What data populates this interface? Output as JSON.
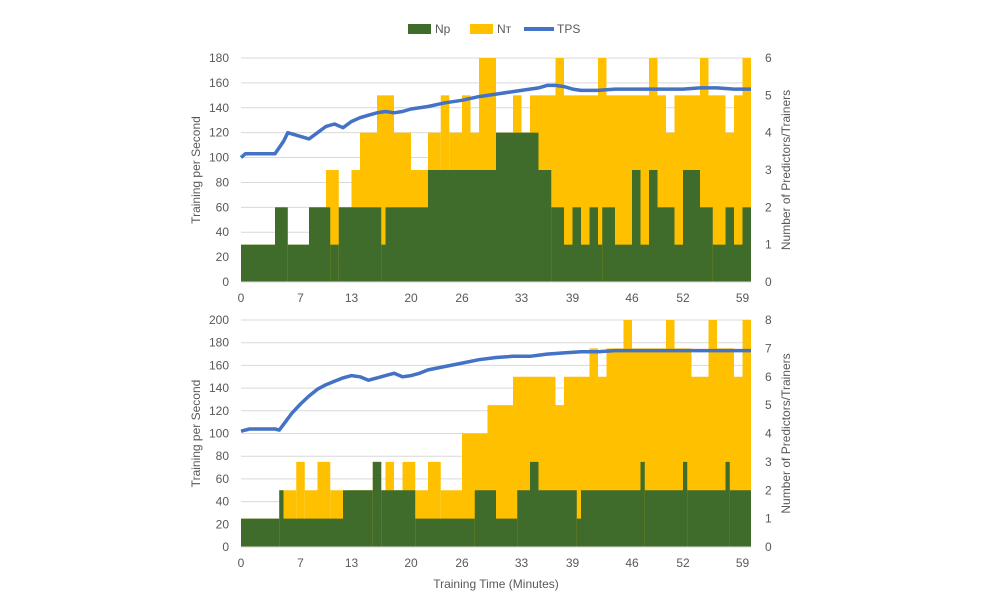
{
  "legend": {
    "np_label": "Np",
    "nt_label": "Nт",
    "tps_label": "TPS"
  },
  "colors": {
    "np": "#3f6b2b",
    "nt": "#ffc000",
    "tps": "#4472c4",
    "grid": "#d9d9d9",
    "axis_text": "#595959"
  },
  "shared_x": {
    "label": "Training Time (Minutes)",
    "range": [
      0,
      60
    ],
    "ticks": [
      0,
      7,
      13,
      20,
      26,
      33,
      39,
      46,
      52,
      59
    ]
  },
  "chart_data": [
    {
      "type": "bar",
      "title": "",
      "xlabel": "",
      "ylabel": "Training  per Second",
      "y2label": "Number of Predictors/Trainers",
      "ylim": [
        0,
        180
      ],
      "yticks": [
        0,
        20,
        40,
        60,
        80,
        100,
        120,
        140,
        160,
        180
      ],
      "y2lim": [
        0,
        6
      ],
      "y2ticks": [
        0,
        1,
        2,
        3,
        4,
        5,
        6
      ],
      "grid": true,
      "legend_position": "top-center",
      "series": [
        {
          "name": "Np",
          "axis": "secondary",
          "kind": "step-bar",
          "points": [
            [
              0,
              1
            ],
            [
              4,
              2
            ],
            [
              5.5,
              1
            ],
            [
              8,
              2
            ],
            [
              10.5,
              1
            ],
            [
              11.5,
              2
            ],
            [
              16.5,
              1
            ],
            [
              17,
              2
            ],
            [
              22,
              3
            ],
            [
              30,
              4
            ],
            [
              35,
              3
            ],
            [
              36.5,
              2
            ],
            [
              38,
              1
            ],
            [
              39,
              2
            ],
            [
              40,
              1
            ],
            [
              41,
              2
            ],
            [
              42,
              1
            ],
            [
              42.5,
              2
            ],
            [
              44,
              1
            ],
            [
              46,
              3
            ],
            [
              47,
              1
            ],
            [
              48,
              3
            ],
            [
              49,
              2
            ],
            [
              51,
              1
            ],
            [
              52,
              3
            ],
            [
              54,
              2
            ],
            [
              55.5,
              1
            ],
            [
              57,
              2
            ],
            [
              58,
              1
            ],
            [
              59,
              2
            ],
            [
              60,
              2
            ]
          ]
        },
        {
          "name": "Nт",
          "axis": "secondary",
          "kind": "step-bar",
          "points": [
            [
              0,
              1
            ],
            [
              4,
              2
            ],
            [
              5.5,
              1
            ],
            [
              8,
              2
            ],
            [
              10,
              3
            ],
            [
              11.5,
              2
            ],
            [
              13,
              3
            ],
            [
              14,
              4
            ],
            [
              16,
              5
            ],
            [
              18,
              4
            ],
            [
              20,
              3
            ],
            [
              22,
              4
            ],
            [
              23.5,
              5
            ],
            [
              24.5,
              4
            ],
            [
              26,
              5
            ],
            [
              27,
              4
            ],
            [
              28,
              6
            ],
            [
              30,
              4
            ],
            [
              32,
              5
            ],
            [
              33,
              4
            ],
            [
              34,
              5
            ],
            [
              37,
              6
            ],
            [
              38,
              5
            ],
            [
              42,
              6
            ],
            [
              43,
              5
            ],
            [
              48,
              6
            ],
            [
              49,
              5
            ],
            [
              50,
              4
            ],
            [
              51,
              5
            ],
            [
              54,
              6
            ],
            [
              55,
              5
            ],
            [
              57,
              4
            ],
            [
              58,
              5
            ],
            [
              59,
              6
            ],
            [
              60,
              6
            ]
          ]
        },
        {
          "name": "TPS",
          "axis": "primary",
          "kind": "line",
          "points": [
            [
              0,
              100
            ],
            [
              0.5,
              103
            ],
            [
              1,
              103
            ],
            [
              3,
              103
            ],
            [
              4,
              103
            ],
            [
              5,
              113
            ],
            [
              5.5,
              120
            ],
            [
              6,
              119
            ],
            [
              7,
              117
            ],
            [
              8,
              115
            ],
            [
              9,
              120
            ],
            [
              10,
              125
            ],
            [
              11,
              127
            ],
            [
              12,
              124
            ],
            [
              13,
              129
            ],
            [
              14,
              132
            ],
            [
              15,
              134
            ],
            [
              16,
              136
            ],
            [
              17,
              137
            ],
            [
              18,
              136
            ],
            [
              19,
              137
            ],
            [
              20,
              139
            ],
            [
              22,
              141
            ],
            [
              24,
              144
            ],
            [
              26,
              146
            ],
            [
              28,
              149
            ],
            [
              30,
              151
            ],
            [
              32,
              153
            ],
            [
              34,
              155
            ],
            [
              35,
              156
            ],
            [
              36,
              158
            ],
            [
              37,
              158
            ],
            [
              38,
              157
            ],
            [
              39,
              155
            ],
            [
              40,
              154
            ],
            [
              42,
              154
            ],
            [
              44,
              155
            ],
            [
              46,
              155
            ],
            [
              48,
              155
            ],
            [
              50,
              155
            ],
            [
              52,
              155
            ],
            [
              54,
              156
            ],
            [
              56,
              156
            ],
            [
              58,
              155
            ],
            [
              60,
              155
            ]
          ]
        }
      ]
    },
    {
      "type": "bar",
      "title": "",
      "xlabel": "Training Time (Minutes)",
      "ylabel": "Training  per Second",
      "y2label": "Number of Predictors/Trainers",
      "ylim": [
        0,
        200
      ],
      "yticks": [
        0,
        20,
        40,
        60,
        80,
        100,
        120,
        140,
        160,
        180,
        200
      ],
      "y2lim": [
        0,
        8
      ],
      "y2ticks": [
        0,
        1,
        2,
        3,
        4,
        5,
        6,
        7,
        8
      ],
      "grid": true,
      "legend_position": "top-center",
      "series": [
        {
          "name": "Np",
          "axis": "secondary",
          "kind": "step-bar",
          "points": [
            [
              0,
              1
            ],
            [
              4.5,
              2
            ],
            [
              5,
              1
            ],
            [
              12,
              2
            ],
            [
              13,
              2
            ],
            [
              15.5,
              3
            ],
            [
              16.5,
              2
            ],
            [
              20.5,
              1
            ],
            [
              27.5,
              2
            ],
            [
              30,
              1
            ],
            [
              32.5,
              2
            ],
            [
              34,
              3
            ],
            [
              35,
              2
            ],
            [
              39.5,
              1
            ],
            [
              40,
              2
            ],
            [
              47,
              3
            ],
            [
              47.5,
              2
            ],
            [
              52,
              3
            ],
            [
              52.5,
              2
            ],
            [
              57,
              3
            ],
            [
              57.5,
              2
            ],
            [
              60,
              2
            ]
          ]
        },
        {
          "name": "Nт",
          "axis": "secondary",
          "kind": "step-bar",
          "points": [
            [
              0,
              1
            ],
            [
              4.5,
              2
            ],
            [
              6.5,
              3
            ],
            [
              7.5,
              2
            ],
            [
              9,
              3
            ],
            [
              10.5,
              2
            ],
            [
              12,
              1
            ],
            [
              12.5,
              2
            ],
            [
              15.5,
              3
            ],
            [
              16.5,
              2
            ],
            [
              17,
              3
            ],
            [
              18,
              2
            ],
            [
              19,
              3
            ],
            [
              20.5,
              2
            ],
            [
              22,
              3
            ],
            [
              23.5,
              2
            ],
            [
              26,
              4
            ],
            [
              28,
              4
            ],
            [
              29,
              5
            ],
            [
              31,
              5
            ],
            [
              32,
              6
            ],
            [
              37,
              5
            ],
            [
              38,
              6
            ],
            [
              41,
              7
            ],
            [
              42,
              6
            ],
            [
              43,
              7
            ],
            [
              45,
              8
            ],
            [
              46,
              7
            ],
            [
              50,
              8
            ],
            [
              51,
              7
            ],
            [
              53,
              6
            ],
            [
              55,
              8
            ],
            [
              56,
              7
            ],
            [
              58,
              6
            ],
            [
              59,
              8
            ],
            [
              60,
              8
            ]
          ]
        },
        {
          "name": "TPS",
          "axis": "primary",
          "kind": "line",
          "points": [
            [
              0,
              102
            ],
            [
              1,
              104
            ],
            [
              3,
              104
            ],
            [
              4,
              104
            ],
            [
              4.5,
              103
            ],
            [
              5,
              108
            ],
            [
              6,
              118
            ],
            [
              7,
              126
            ],
            [
              8,
              133
            ],
            [
              9,
              139
            ],
            [
              10,
              143
            ],
            [
              11,
              146
            ],
            [
              12,
              149
            ],
            [
              13,
              151
            ],
            [
              14,
              150
            ],
            [
              15,
              147
            ],
            [
              16,
              149
            ],
            [
              17,
              151
            ],
            [
              18,
              153
            ],
            [
              19,
              150
            ],
            [
              20,
              151
            ],
            [
              21,
              153
            ],
            [
              22,
              156
            ],
            [
              24,
              159
            ],
            [
              26,
              162
            ],
            [
              28,
              165
            ],
            [
              30,
              167
            ],
            [
              32,
              168
            ],
            [
              34,
              168
            ],
            [
              36,
              170
            ],
            [
              38,
              171
            ],
            [
              40,
              172
            ],
            [
              42,
              172
            ],
            [
              44,
              173
            ],
            [
              46,
              173
            ],
            [
              48,
              173
            ],
            [
              50,
              173
            ],
            [
              52,
              173
            ],
            [
              54,
              173
            ],
            [
              56,
              173
            ],
            [
              58,
              173
            ],
            [
              60,
              173
            ]
          ]
        }
      ]
    }
  ]
}
